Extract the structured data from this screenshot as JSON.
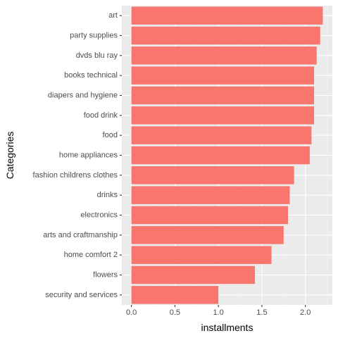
{
  "chart_data": {
    "type": "bar",
    "orientation": "horizontal",
    "xlabel": "installments",
    "ylabel": "Categories",
    "xlim": [
      -0.11,
      2.31
    ],
    "xticks": [
      0.0,
      0.5,
      1.0,
      1.5,
      2.0
    ],
    "xtick_labels": [
      "0.0",
      "0.5",
      "1.0",
      "1.5",
      "2.0"
    ],
    "grid": true,
    "categories": [
      "art",
      "party supplies",
      "dvds blu ray",
      "books technical",
      "diapers and hygiene",
      "food drink",
      "food",
      "home appliances",
      "fashion childrens clothes",
      "drinks",
      "electronics",
      "arts and craftmanship",
      "home comfort 2",
      "flowers",
      "security and services"
    ],
    "values": [
      2.2,
      2.17,
      2.13,
      2.1,
      2.1,
      2.1,
      2.07,
      2.05,
      1.87,
      1.82,
      1.8,
      1.75,
      1.61,
      1.42,
      1.0
    ],
    "colors": {
      "bar": "#F8766D",
      "panel_background": "#EBEBEB",
      "major_grid": "#FFFFFF",
      "minor_grid": "#F5F5F5",
      "tick": "#333333",
      "tick_text": "#4D4D4D"
    }
  }
}
